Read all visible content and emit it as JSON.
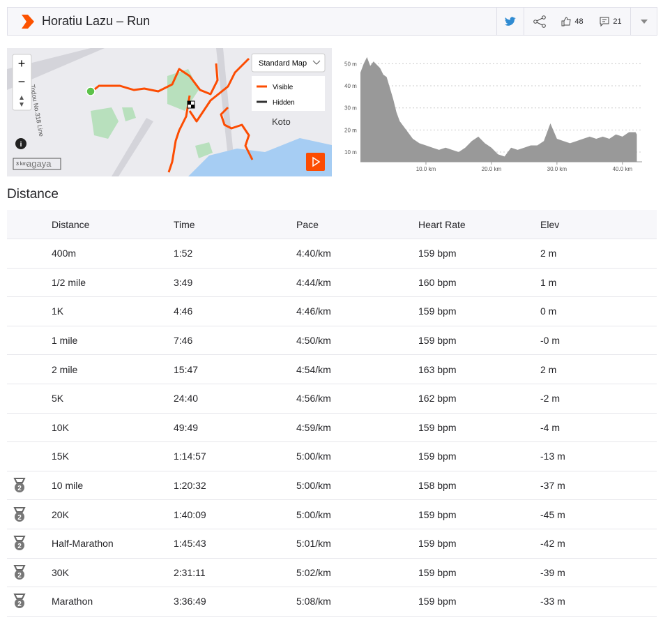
{
  "header": {
    "title": "Horatiu Lazu – Run",
    "kudos": "48",
    "comments": "21"
  },
  "map": {
    "map_type": "Standard Map",
    "legend": [
      "Visible",
      "Hidden"
    ],
    "place": "Koto",
    "road": "Todou No.318 Line",
    "place_partial": "agaya",
    "scale": "3 km"
  },
  "elevation": {
    "type": "area",
    "x": [
      0,
      0.5,
      1,
      1.5,
      2,
      3,
      3.5,
      4,
      5,
      5.5,
      6,
      7,
      8,
      9,
      10,
      11,
      12,
      13,
      14,
      15,
      16,
      17,
      18,
      19,
      20,
      21,
      22,
      23,
      24,
      25,
      26,
      27,
      28,
      29,
      30,
      31,
      32,
      33,
      34,
      35,
      36,
      37,
      38,
      39,
      40,
      41,
      42,
      42.2
    ],
    "values": [
      46,
      50,
      53,
      49,
      51,
      48,
      45,
      44,
      34,
      28,
      24,
      20,
      16,
      14,
      13,
      12,
      11,
      12,
      11,
      10,
      12,
      15,
      17,
      14,
      12,
      9,
      8,
      12,
      11,
      12,
      13,
      13,
      15,
      23,
      16,
      15,
      14,
      15,
      16,
      17,
      16,
      17,
      16,
      18,
      17,
      19,
      19,
      18
    ],
    "color": "#999999",
    "xlim": [
      0,
      43
    ],
    "ylim": [
      5.6,
      52
    ],
    "yticks": [
      {
        "value": 10,
        "label": "10 m"
      },
      {
        "value": 20,
        "label": "20 m"
      },
      {
        "value": 30,
        "label": "30 m"
      },
      {
        "value": 40,
        "label": "40 m"
      },
      {
        "value": 50,
        "label": "50 m"
      }
    ],
    "xticks": [
      {
        "value": 10,
        "label": "10.0 km"
      },
      {
        "value": 20,
        "label": "20.0 km"
      },
      {
        "value": 30,
        "label": "30.0 km"
      },
      {
        "value": 40,
        "label": "40.0 km"
      }
    ],
    "grid": true
  },
  "section": {
    "title": "Distance"
  },
  "table": {
    "headers": [
      "Distance",
      "Time",
      "Pace",
      "Heart Rate",
      "Elev"
    ],
    "rows": [
      {
        "cells": [
          "400m",
          "1:52",
          "4:40/km",
          "159 bpm",
          "2 m"
        ]
      },
      {
        "cells": [
          "1/2 mile",
          "3:49",
          "4:44/km",
          "160 bpm",
          "1 m"
        ]
      },
      {
        "cells": [
          "1K",
          "4:46",
          "4:46/km",
          "159 bpm",
          "0 m"
        ]
      },
      {
        "cells": [
          "1 mile",
          "7:46",
          "4:50/km",
          "159 bpm",
          "-0 m"
        ]
      },
      {
        "cells": [
          "2 mile",
          "15:47",
          "4:54/km",
          "163 bpm",
          "2 m"
        ]
      },
      {
        "cells": [
          "5K",
          "24:40",
          "4:56/km",
          "162 bpm",
          "-2 m"
        ]
      },
      {
        "cells": [
          "10K",
          "49:49",
          "4:59/km",
          "159 bpm",
          "-4 m"
        ]
      },
      {
        "cells": [
          "15K",
          "1:14:57",
          "5:00/km",
          "159 bpm",
          "-13 m"
        ]
      },
      {
        "medal": "2",
        "cells": [
          "10 mile",
          "1:20:32",
          "5:00/km",
          "158 bpm",
          "-37 m"
        ]
      },
      {
        "medal": "2",
        "cells": [
          "20K",
          "1:40:09",
          "5:00/km",
          "159 bpm",
          "-45 m"
        ]
      },
      {
        "medal": "2",
        "cells": [
          "Half-Marathon",
          "1:45:43",
          "5:01/km",
          "159 bpm",
          "-42 m"
        ]
      },
      {
        "medal": "2",
        "cells": [
          "30K",
          "2:31:11",
          "5:02/km",
          "159 bpm",
          "-39 m"
        ]
      },
      {
        "medal": "2",
        "cells": [
          "Marathon",
          "3:36:49",
          "5:08/km",
          "159 bpm",
          "-33 m"
        ]
      }
    ]
  }
}
